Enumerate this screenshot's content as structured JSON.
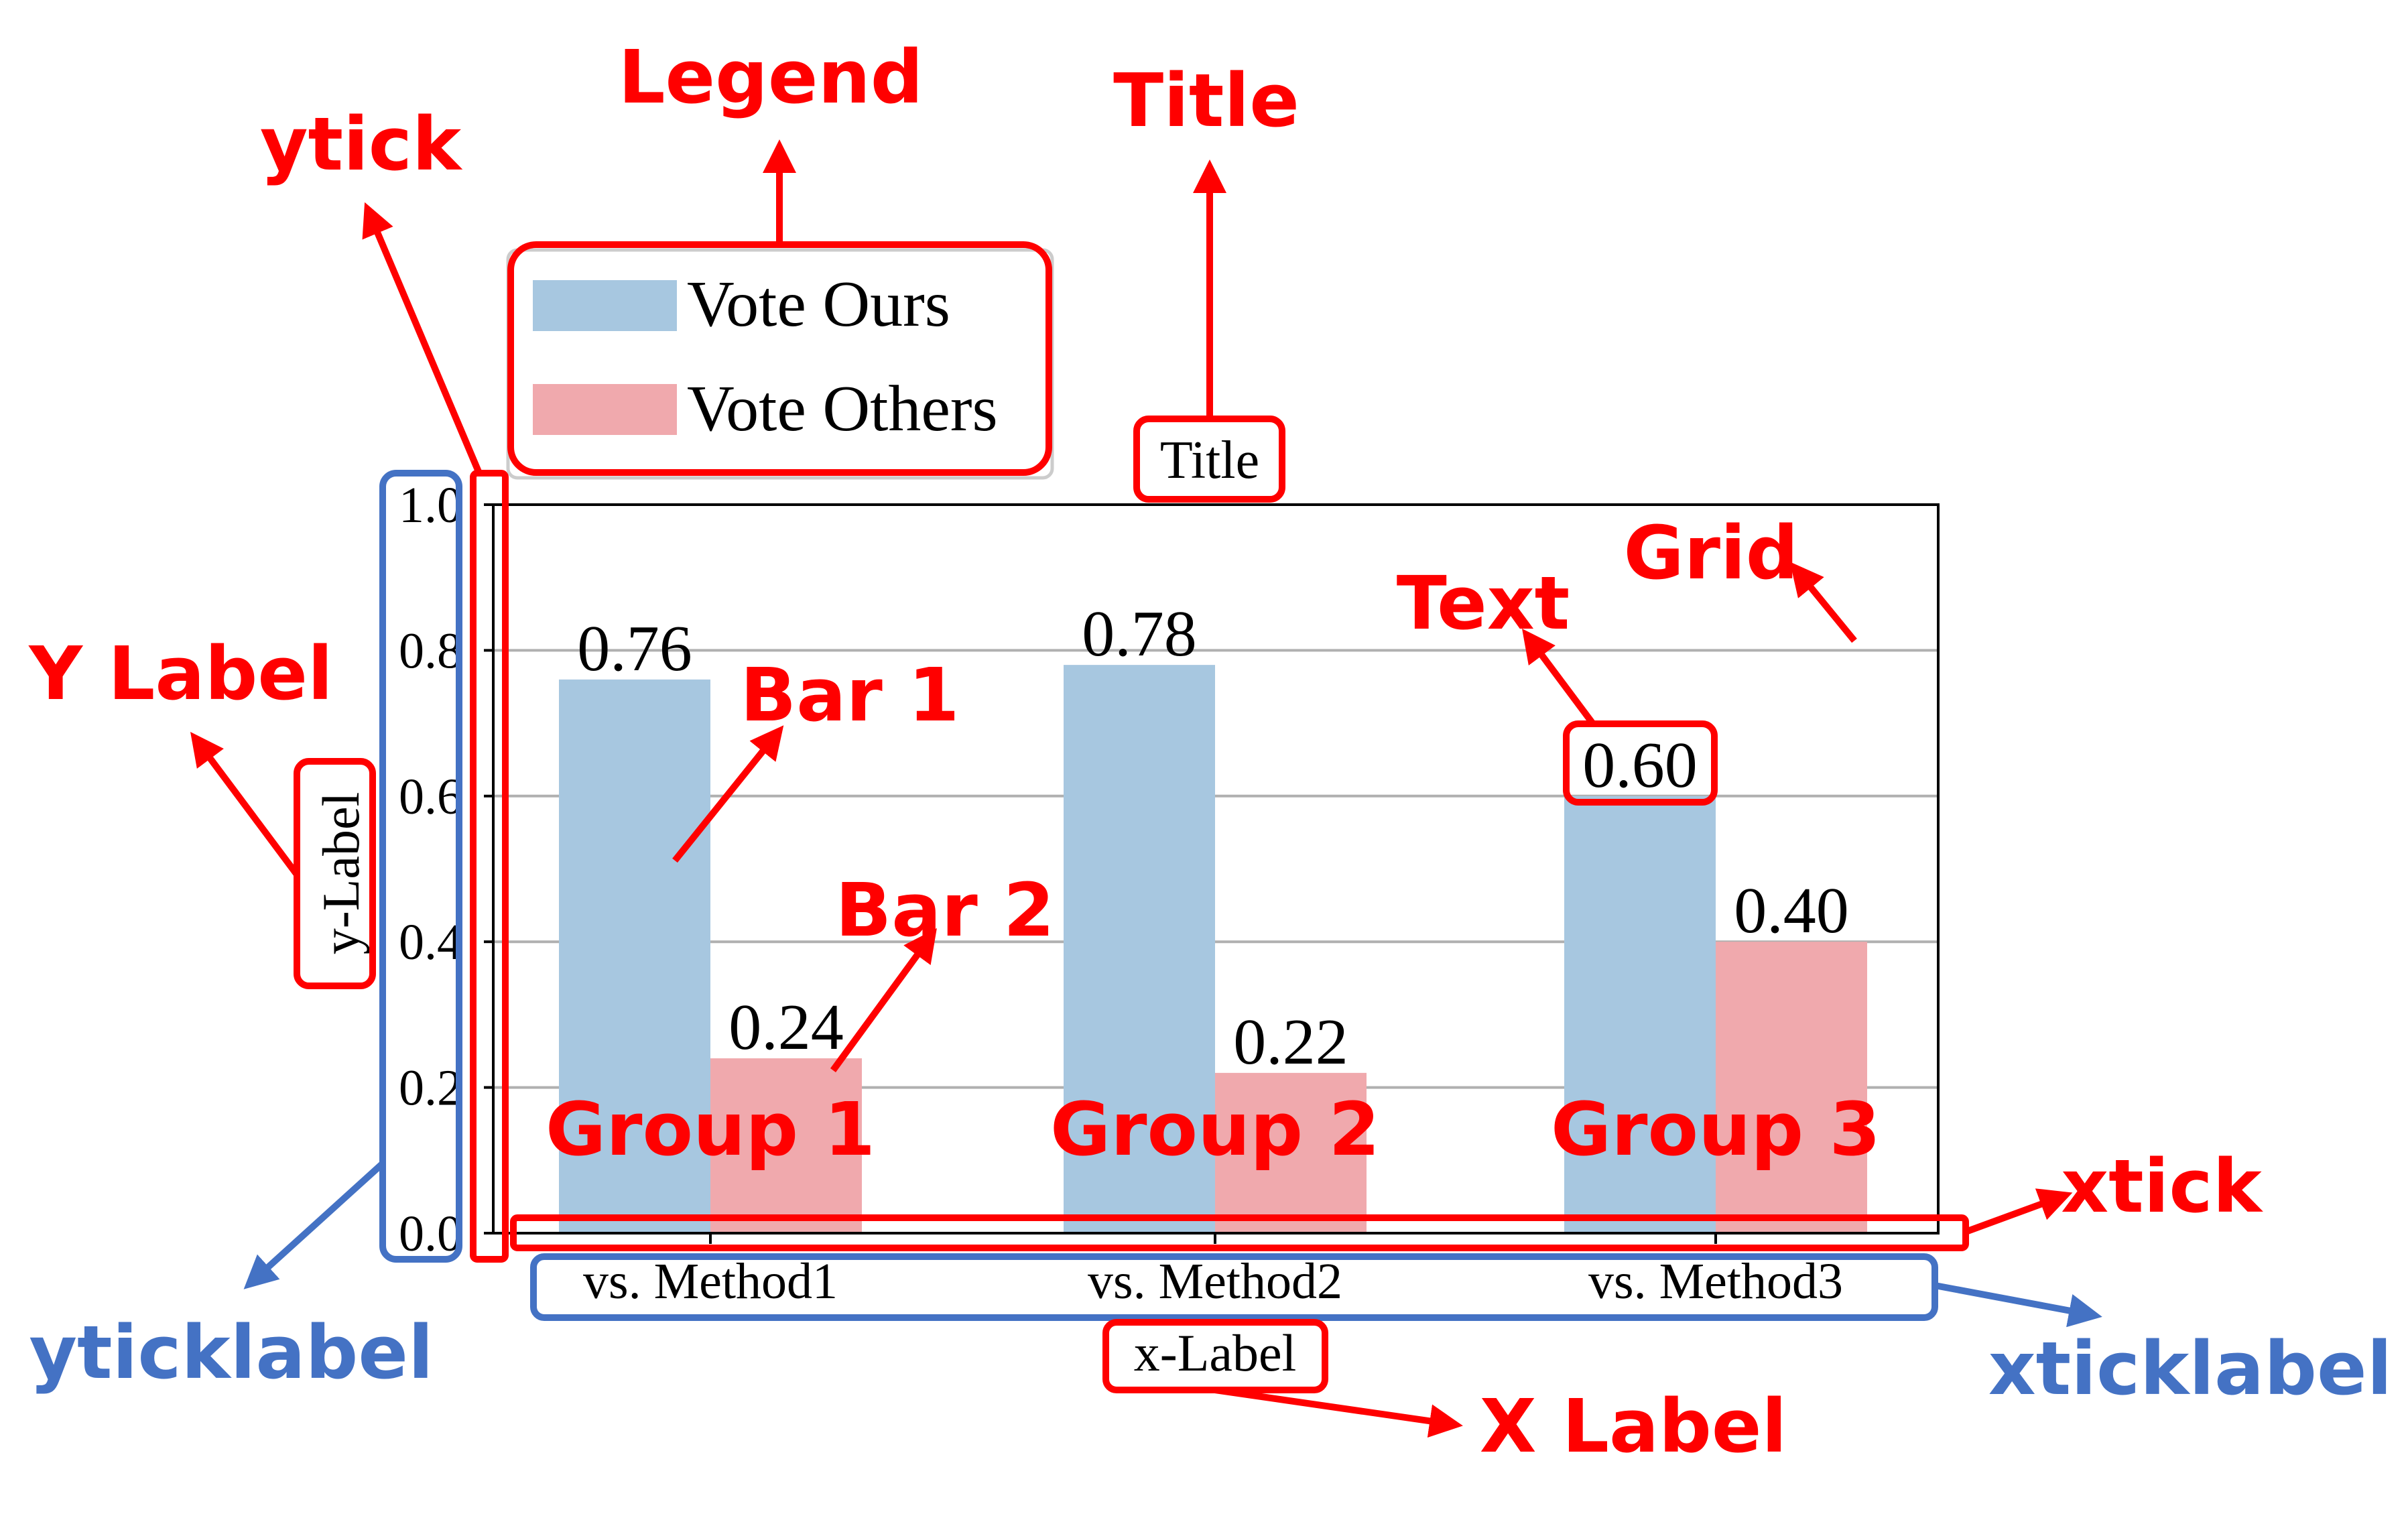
{
  "chart_data": {
    "type": "bar",
    "title": "Title",
    "xlabel": "x-Label",
    "ylabel": "y-Label",
    "ylim": [
      0,
      1.0
    ],
    "yticks": [
      "0.0",
      "0.2",
      "0.4",
      "0.6",
      "0.8",
      "1.0"
    ],
    "categories": [
      "vs. Method1",
      "vs. Method2",
      "vs. Method3"
    ],
    "series": [
      {
        "name": "Vote Ours",
        "values": [
          0.76,
          0.78,
          0.6
        ],
        "labels": [
          "0.76",
          "0.78",
          "0.60"
        ],
        "color": "#a7c7e0"
      },
      {
        "name": "Vote Others",
        "values": [
          0.24,
          0.22,
          0.4
        ],
        "labels": [
          "0.24",
          "0.22",
          "0.40"
        ],
        "color": "#f0a9ad"
      }
    ],
    "grid": true,
    "legend_position": "above plot, top-left"
  },
  "annotations": {
    "legend": "Legend",
    "title": "Title",
    "ytick": "ytick",
    "y_label": "Y Label",
    "bar1": "Bar 1",
    "bar2": "Bar 2",
    "text": "Text",
    "grid": "Grid",
    "group1": "Group 1",
    "group2": "Group 2",
    "group3": "Group 3",
    "xtick": "xtick",
    "yticklabel": "yticklabel",
    "xticklabel": "xticklabel",
    "x_label": "X Label"
  },
  "colors": {
    "annotation_red": "#ff0000",
    "annotation_blue": "#4472c4",
    "bar_blue": "#a7c7e0",
    "bar_pink": "#f0a9ad",
    "grid": "#b0b0b0"
  }
}
